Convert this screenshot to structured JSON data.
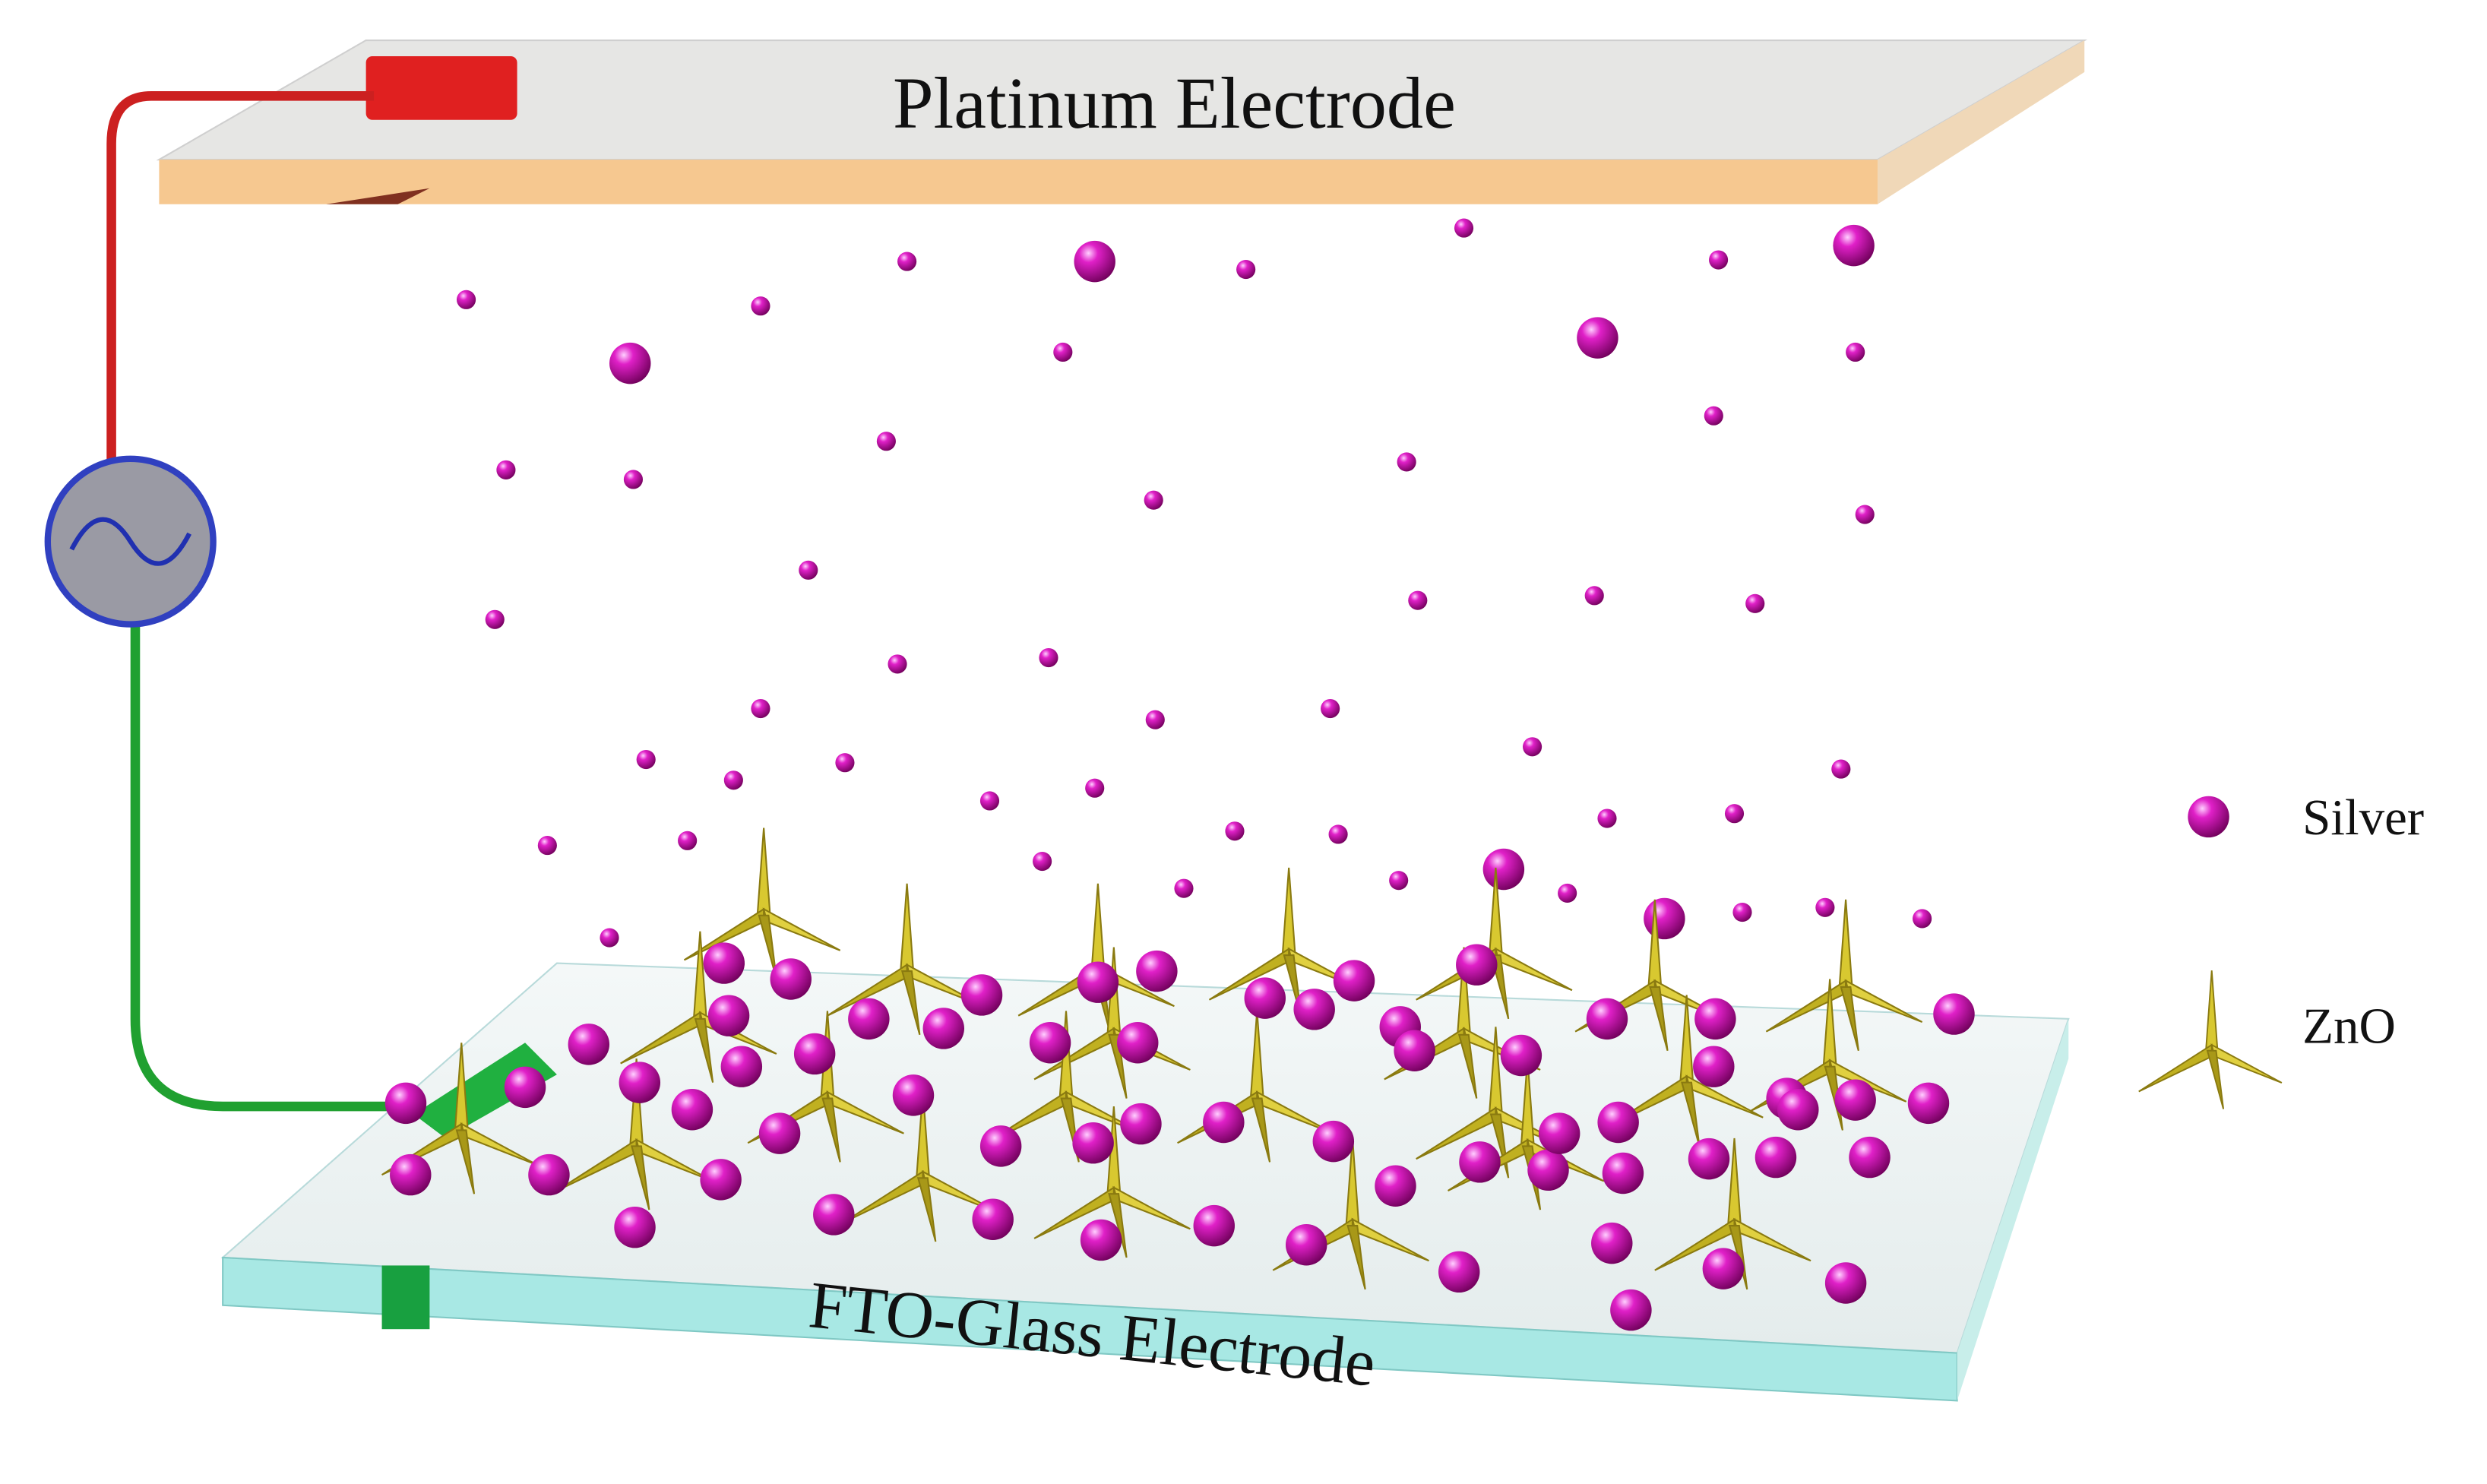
{
  "labels": {
    "top_electrode": "Platinum Electrode",
    "bottom_electrode": "FTO-Glass Electrode"
  },
  "legend": {
    "items": [
      {
        "label": "Silver"
      },
      {
        "label": "ZnO"
      }
    ]
  }
}
